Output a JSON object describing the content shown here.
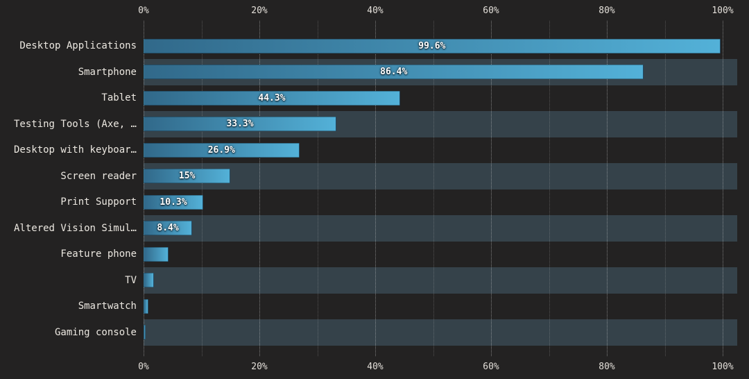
{
  "chart_data": {
    "type": "bar",
    "orientation": "horizontal",
    "title": "",
    "xlabel": "",
    "ylabel": "",
    "categories": [
      "Desktop Applications",
      "Smartphone",
      "Tablet",
      "Testing Tools (Axe, …",
      "Desktop with keyboar…",
      "Screen reader",
      "Print Support",
      "Altered Vision Simul…",
      "Feature phone",
      "TV",
      "Smartwatch",
      "Gaming console"
    ],
    "values": [
      99.6,
      86.4,
      44.3,
      33.3,
      26.9,
      15,
      10.3,
      8.4,
      4.3,
      1.8,
      0.8,
      0.4
    ],
    "bar_labels": [
      "99.6%",
      "86.4%",
      "44.3%",
      "33.3%",
      "26.9%",
      "15%",
      "10.3%",
      "8.4%",
      "",
      "",
      "",
      ""
    ],
    "axis_ticks": [
      "0%",
      "20%",
      "40%",
      "60%",
      "80%",
      "100%"
    ],
    "axis_tick_values": [
      0,
      20,
      40,
      60,
      80,
      100
    ],
    "xlim": [
      0,
      102.4
    ],
    "grid": "dotted vertical lines every 10%, labels every 20%, axis ticks on top and bottom",
    "legend": "none",
    "row_striping": "every second row (2nd, 4th, ...) has a full-width dark slate stripe",
    "colors": {
      "background": "#232222",
      "row_stripe": "#35424a",
      "bar_gradient_start": "#31698a",
      "bar_gradient_end": "#53b1d8",
      "bar_value_text": "#ffffff",
      "category_text": "#ece8e1",
      "axis_text": "#e3dfd9",
      "gridline": "#bdbdbd"
    }
  }
}
